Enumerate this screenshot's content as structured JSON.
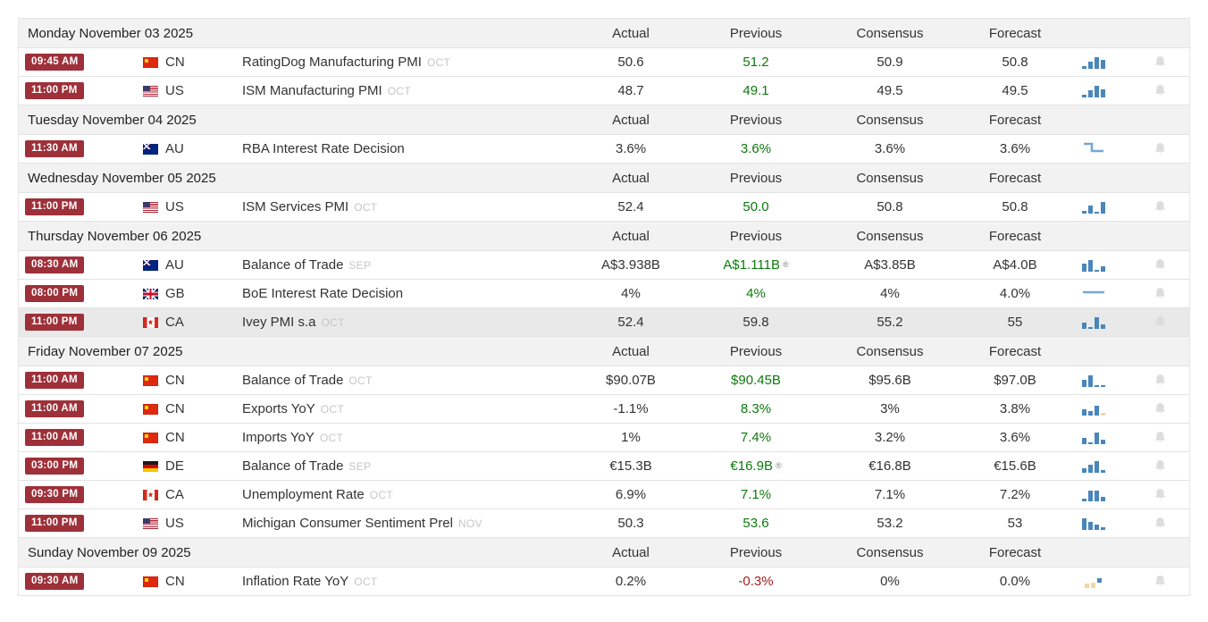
{
  "palette": {
    "badge_red": "#9e3039",
    "positive_green": "#0d7a0d",
    "negative_red": "#a31d1d",
    "bar_blue": "#4a86ba",
    "bar_tan": "#f0d8a4",
    "line_blue": "#78a7d4",
    "bell_gray": "#dcdcdc",
    "day_band_gray": "#f3f2f2"
  },
  "days": [
    {
      "date": "Monday November 03 2025",
      "columns": [
        "Actual",
        "Previous",
        "Consensus",
        "Forecast"
      ],
      "events": [
        {
          "time": "09:45 AM",
          "country": "CN",
          "name": "RatingDog Manufacturing PMI",
          "ref": "OCT",
          "actual": "50.6",
          "previous": "51.2",
          "prev_state": "pos",
          "consensus": "50.9",
          "forecast": "50.8",
          "spark": {
            "type": "bars",
            "bars": [
              [
                3,
                "b",
                0
              ],
              [
                8,
                "b",
                0
              ],
              [
                13,
                "b",
                0
              ],
              [
                10,
                "b",
                0
              ]
            ]
          }
        },
        {
          "time": "11:00 PM",
          "country": "US",
          "name": "ISM Manufacturing PMI",
          "ref": "OCT",
          "actual": "48.7",
          "previous": "49.1",
          "prev_state": "pos",
          "consensus": "49.5",
          "forecast": "49.5",
          "spark": {
            "type": "bars",
            "bars": [
              [
                3,
                "b",
                0
              ],
              [
                8,
                "b",
                0
              ],
              [
                13,
                "b",
                0
              ],
              [
                9,
                "b",
                0
              ]
            ]
          }
        }
      ]
    },
    {
      "date": "Tuesday November 04 2025",
      "columns": [
        "Actual",
        "Previous",
        "Consensus",
        "Forecast"
      ],
      "events": [
        {
          "time": "11:30 AM",
          "country": "AU",
          "name": "RBA Interest Rate Decision",
          "ref": "",
          "actual": "3.6%",
          "previous": "3.6%",
          "prev_state": "pos",
          "consensus": "3.6%",
          "forecast": "3.6%",
          "spark": {
            "type": "step"
          }
        }
      ]
    },
    {
      "date": "Wednesday November 05 2025",
      "columns": [
        "Actual",
        "Previous",
        "Consensus",
        "Forecast"
      ],
      "events": [
        {
          "time": "11:00 PM",
          "country": "US",
          "name": "ISM Services PMI",
          "ref": "OCT",
          "actual": "52.4",
          "previous": "50.0",
          "prev_state": "pos",
          "consensus": "50.8",
          "forecast": "50.8",
          "spark": {
            "type": "bars",
            "bars": [
              [
                3,
                "b",
                0
              ],
              [
                9,
                "b",
                0
              ],
              [
                2,
                "b",
                0
              ],
              [
                13,
                "b",
                0
              ]
            ]
          }
        }
      ]
    },
    {
      "date": "Thursday November 06 2025",
      "columns": [
        "Actual",
        "Previous",
        "Consensus",
        "Forecast"
      ],
      "events": [
        {
          "time": "08:30 AM",
          "country": "AU",
          "name": "Balance of Trade",
          "ref": "SEP",
          "actual": "A$3.938B",
          "previous": "A$1.111B",
          "previous_note": "®",
          "prev_state": "pos",
          "consensus": "A$3.85B",
          "forecast": "A$4.0B",
          "spark": {
            "type": "bars",
            "bars": [
              [
                9,
                "b",
                0
              ],
              [
                13,
                "b",
                0
              ],
              [
                2,
                "b",
                0
              ],
              [
                6,
                "b",
                0
              ]
            ]
          }
        },
        {
          "time": "08:00 PM",
          "country": "GB",
          "name": "BoE Interest Rate Decision",
          "ref": "",
          "actual": "4%",
          "previous": "4%",
          "prev_state": "pos",
          "consensus": "4%",
          "forecast": "4.0%",
          "spark": {
            "type": "flat"
          }
        },
        {
          "time": "11:00 PM",
          "country": "CA",
          "name": "Ivey PMI s.a",
          "ref": "OCT",
          "actual": "52.4",
          "previous": "59.8",
          "prev_state": "neutral",
          "consensus": "55.2",
          "forecast": "55",
          "highlight": true,
          "spark": {
            "type": "bars",
            "bars": [
              [
                7,
                "b",
                0
              ],
              [
                2,
                "b",
                0
              ],
              [
                13,
                "b",
                0
              ],
              [
                5,
                "b",
                0
              ]
            ]
          }
        }
      ]
    },
    {
      "date": "Friday November 07 2025",
      "columns": [
        "Actual",
        "Previous",
        "Consensus",
        "Forecast"
      ],
      "events": [
        {
          "time": "11:00 AM",
          "country": "CN",
          "name": "Balance of Trade",
          "ref": "OCT",
          "actual": "$90.07B",
          "previous": "$90.45B",
          "prev_state": "pos",
          "consensus": "$95.6B",
          "forecast": "$97.0B",
          "spark": {
            "type": "bars",
            "bars": [
              [
                8,
                "b",
                0
              ],
              [
                13,
                "b",
                0
              ],
              [
                2,
                "b",
                0
              ],
              [
                2,
                "b",
                0
              ]
            ]
          }
        },
        {
          "time": "11:00 AM",
          "country": "CN",
          "name": "Exports YoY",
          "ref": "OCT",
          "actual": "-1.1%",
          "previous": "8.3%",
          "prev_state": "pos",
          "consensus": "3%",
          "forecast": "3.8%",
          "spark": {
            "type": "bars",
            "bars": [
              [
                7,
                "b",
                0
              ],
              [
                5,
                "b",
                0
              ],
              [
                11,
                "b",
                0
              ],
              [
                3,
                "y",
                0
              ]
            ]
          }
        },
        {
          "time": "11:00 AM",
          "country": "CN",
          "name": "Imports YoY",
          "ref": "OCT",
          "actual": "1%",
          "previous": "7.4%",
          "prev_state": "pos",
          "consensus": "3.2%",
          "forecast": "3.6%",
          "spark": {
            "type": "bars",
            "bars": [
              [
                7,
                "b",
                0
              ],
              [
                2,
                "b",
                0
              ],
              [
                13,
                "b",
                0
              ],
              [
                5,
                "b",
                0
              ]
            ]
          }
        },
        {
          "time": "03:00 PM",
          "country": "DE",
          "name": "Balance of Trade",
          "ref": "SEP",
          "actual": "€15.3B",
          "previous": "€16.9B",
          "previous_note": "®",
          "prev_state": "pos",
          "consensus": "€16.8B",
          "forecast": "€15.6B",
          "spark": {
            "type": "bars",
            "bars": [
              [
                5,
                "b",
                0
              ],
              [
                9,
                "b",
                0
              ],
              [
                13,
                "b",
                0
              ],
              [
                3,
                "b",
                0
              ]
            ]
          }
        },
        {
          "time": "09:30 PM",
          "country": "CA",
          "name": "Unemployment Rate",
          "ref": "OCT",
          "actual": "6.9%",
          "previous": "7.1%",
          "prev_state": "pos",
          "consensus": "7.1%",
          "forecast": "7.2%",
          "spark": {
            "type": "bars",
            "bars": [
              [
                3,
                "b",
                0
              ],
              [
                12,
                "b",
                0
              ],
              [
                12,
                "b",
                0
              ],
              [
                5,
                "b",
                0
              ]
            ]
          }
        },
        {
          "time": "11:00 PM",
          "country": "US",
          "name": "Michigan Consumer Sentiment Prel",
          "ref": "NOV",
          "actual": "50.3",
          "previous": "53.6",
          "prev_state": "pos",
          "consensus": "53.2",
          "forecast": "53",
          "spark": {
            "type": "bars",
            "bars": [
              [
                13,
                "b",
                0
              ],
              [
                9,
                "b",
                0
              ],
              [
                6,
                "b",
                0
              ],
              [
                3,
                "b",
                0
              ]
            ]
          }
        }
      ]
    },
    {
      "date": "Sunday November 09 2025",
      "columns": [
        "Actual",
        "Previous",
        "Consensus",
        "Forecast"
      ],
      "events": [
        {
          "time": "09:30 AM",
          "country": "CN",
          "name": "Inflation Rate YoY",
          "ref": "OCT",
          "actual": "0.2%",
          "previous": "-0.3%",
          "prev_state": "neg",
          "consensus": "0%",
          "forecast": "0.0%",
          "spark": {
            "type": "bars",
            "bars": [
              [
                5,
                "y",
                0
              ],
              [
                6,
                "y",
                0
              ],
              [
                5,
                "b",
                6
              ]
            ]
          }
        }
      ]
    }
  ]
}
